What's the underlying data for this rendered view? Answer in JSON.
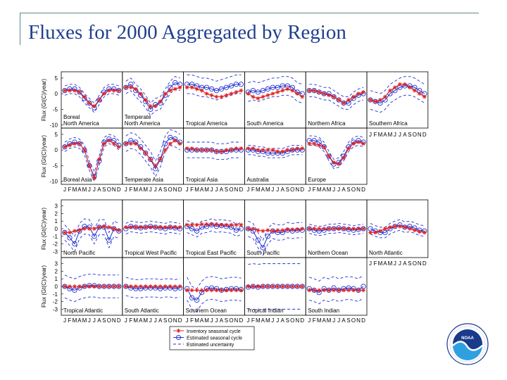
{
  "slide": {
    "title": "Fluxes for 2000 Aggregated by Region"
  },
  "chart_data": {
    "type": "line",
    "months": [
      "J",
      "F",
      "M",
      "A",
      "M",
      "J",
      "J",
      "A",
      "S",
      "O",
      "N",
      "D"
    ],
    "ylabel": "Flux (Gt(C)/year)",
    "legend": {
      "inventory": "Inventory seasonal cycle",
      "estimated": "Estimated seasonal cycle",
      "uncertainty": "Estimated uncertainty"
    },
    "colors": {
      "inventory": "#e02020",
      "estimated": "#2030d0",
      "uncertainty": "#2030d0"
    },
    "land": {
      "yticks": [
        5,
        0,
        -5,
        -10
      ],
      "ylim": [
        -11,
        7
      ],
      "regions": [
        {
          "name": "Boreal\nNorth America",
          "inventory": [
            1,
            1,
            1,
            0.5,
            -1,
            -3,
            -4,
            -2,
            0,
            1,
            1,
            1
          ],
          "estimated": [
            1,
            1.5,
            1.5,
            0.5,
            -1.5,
            -3,
            -4.5,
            -2,
            0.5,
            1.5,
            1.5,
            1
          ],
          "unc": 1.5
        },
        {
          "name": "Temperate\nNorth America",
          "inventory": [
            2,
            2,
            1.5,
            0,
            -2,
            -4,
            -4,
            -2.5,
            0,
            1,
            1.5,
            2
          ],
          "estimated": [
            2,
            3,
            1,
            -0.5,
            -2.5,
            -5,
            -3.5,
            -3,
            -0.5,
            2,
            3.5,
            3
          ],
          "unc": 2
        },
        {
          "name": "Tropical America",
          "inventory": [
            2,
            2,
            1.5,
            1,
            0,
            -0.5,
            -1,
            -1,
            -0.5,
            0,
            0.5,
            1
          ],
          "estimated": [
            3,
            3,
            2.5,
            2,
            2,
            1.5,
            1,
            1.5,
            2,
            2.5,
            3,
            3
          ],
          "unc": 3
        },
        {
          "name": "South America",
          "inventory": [
            0,
            -1,
            -1.5,
            -1,
            -0.5,
            0,
            0.5,
            1,
            1.5,
            1,
            0,
            -1
          ],
          "estimated": [
            0.5,
            1,
            0.5,
            1,
            1.5,
            2,
            2,
            2.5,
            2.5,
            2,
            0.5,
            0
          ],
          "unc": 3
        },
        {
          "name": "Northern Africa",
          "inventory": [
            1,
            1,
            0.5,
            0,
            -0.5,
            -1,
            -2,
            -3,
            -2,
            -1,
            0,
            0.5
          ],
          "estimated": [
            1,
            1,
            0.5,
            0,
            0,
            -1,
            -2,
            -3,
            -3,
            -1.5,
            -0.5,
            0
          ],
          "unc": 2
        },
        {
          "name": "Southern Africa",
          "inventory": [
            -2,
            -2.5,
            -2,
            -1,
            1,
            2,
            3,
            3,
            2,
            1,
            0,
            -1
          ],
          "estimated": [
            -2,
            -2.5,
            -3,
            -2,
            0,
            1,
            2,
            2.5,
            2.5,
            2,
            1,
            0
          ],
          "unc": 3
        },
        {
          "name": "Boreal Asia",
          "inventory": [
            1,
            1.5,
            2,
            2,
            0,
            -5,
            -9,
            -3,
            2,
            3,
            2,
            1
          ],
          "estimated": [
            1,
            2,
            2.5,
            2,
            0,
            -5,
            -8.5,
            -3.5,
            2.5,
            3.5,
            3,
            1.5
          ],
          "unc": 1.5
        },
        {
          "name": "Temperate Asia",
          "inventory": [
            2,
            2,
            2,
            0.5,
            -1,
            -3,
            -5,
            -3,
            0,
            2,
            3,
            2
          ],
          "estimated": [
            2,
            3,
            2.5,
            1,
            -1,
            -3,
            -6,
            -3,
            2,
            4,
            3.5,
            2.5
          ],
          "unc": 2.5
        },
        {
          "name": "Tropical Asia",
          "inventory": [
            0.5,
            0.5,
            0,
            0,
            0,
            0,
            -0.5,
            -0.5,
            0,
            0,
            0.5,
            0.5
          ],
          "estimated": [
            0,
            0,
            0,
            0,
            0,
            0,
            -0.5,
            -0.5,
            -0.5,
            0,
            0,
            0
          ],
          "unc": 2.5
        },
        {
          "name": "Australia",
          "inventory": [
            0.5,
            0.5,
            0,
            0,
            0,
            0,
            -0.5,
            -0.5,
            0,
            0,
            0.5,
            0.5
          ],
          "estimated": [
            0,
            0,
            -0.5,
            -0.5,
            -1,
            -1,
            -1,
            -1,
            -0.5,
            0,
            0,
            0
          ],
          "unc": 1.5
        },
        {
          "name": "Europe",
          "inventory": [
            2,
            2,
            1.5,
            1,
            -2,
            -4,
            -4.5,
            -2.5,
            0.5,
            2,
            2.5,
            2
          ],
          "estimated": [
            3,
            3,
            2.5,
            1,
            -2,
            -4.5,
            -4,
            -2,
            1,
            2.5,
            3,
            2.5
          ],
          "unc": 1.5
        }
      ]
    },
    "ocean": {
      "yticks": [
        3,
        2,
        1,
        0,
        -1,
        -2,
        -3
      ],
      "ylim": [
        -3.8,
        3.8
      ],
      "regions": [
        {
          "name": "North Pacific",
          "inventory": [
            -0.5,
            -0.5,
            -0.3,
            -0.2,
            0,
            0,
            0,
            0.2,
            0.3,
            0.2,
            0,
            -0.2
          ],
          "estimated": [
            -0.5,
            -1.2,
            -2,
            -0.3,
            0.3,
            0.2,
            -1,
            0.2,
            0.2,
            -1.5,
            0,
            -0.3
          ],
          "unc": 1
        },
        {
          "name": "Tropical West Pacific",
          "inventory": [
            0.2,
            0.2,
            0.2,
            0.2,
            0.2,
            0.2,
            0.2,
            0.2,
            0.2,
            0.2,
            0.2,
            0.2
          ],
          "estimated": [
            0,
            0.3,
            0.2,
            0.1,
            0.2,
            0.3,
            0.2,
            0.1,
            0,
            0.2,
            0.1,
            0
          ],
          "unc": 0.7
        },
        {
          "name": "Tropical East Pacific",
          "inventory": [
            0.5,
            0.5,
            0.5,
            0.6,
            0.6,
            0.6,
            0.6,
            0.5,
            0.5,
            0.5,
            0.5,
            0.5
          ],
          "estimated": [
            0.3,
            0,
            -0.3,
            0.2,
            0.3,
            0.5,
            0.3,
            0.4,
            0.3,
            0.2,
            -0.2,
            0
          ],
          "unc": 0.8
        },
        {
          "name": "South Pacific",
          "inventory": [
            0,
            0,
            -0.2,
            -0.3,
            -0.2,
            -0.3,
            -0.2,
            -0.2,
            -0.1,
            -0.1,
            -0.1,
            0
          ],
          "estimated": [
            0,
            -0.3,
            -1.5,
            -2.5,
            -1,
            -0.3,
            -0.5,
            -0.5,
            -0.2,
            -0.3,
            -0.2,
            -0.2
          ],
          "unc": 1
        },
        {
          "name": "Northern Ocean",
          "inventory": [
            0,
            0,
            0,
            0,
            0,
            0,
            0,
            0,
            0,
            0,
            0,
            0
          ],
          "estimated": [
            0,
            -0.2,
            -0.3,
            -0.2,
            0,
            0,
            0.1,
            0,
            -0.1,
            -0.2,
            -0.1,
            0
          ],
          "unc": 0.6
        },
        {
          "name": "North Atlantic",
          "inventory": [
            -0.5,
            -0.5,
            -0.3,
            0,
            0.2,
            0.3,
            0.3,
            0.2,
            0,
            -0.2,
            -0.4,
            -0.5
          ],
          "estimated": [
            0,
            -0.3,
            -0.5,
            -0.5,
            0,
            0.3,
            0.5,
            0.2,
            0.3,
            0.1,
            -0.2,
            -0.3
          ],
          "unc": 0.7
        },
        {
          "name": "Tropical Atlantic",
          "inventory": [
            0,
            0,
            0,
            0,
            0,
            0,
            0,
            0,
            0,
            0,
            0,
            0
          ],
          "estimated": [
            0,
            -0.3,
            -0.5,
            -0.2,
            0,
            0.1,
            0.1,
            0,
            0,
            0,
            0,
            0
          ],
          "unc": 1.5
        },
        {
          "name": "South Atlantic",
          "inventory": [
            0,
            0,
            0,
            0,
            0,
            0,
            0,
            0,
            0,
            0,
            0,
            0
          ],
          "estimated": [
            0,
            -0.2,
            -0.3,
            -0.3,
            -0.2,
            -0.2,
            -0.2,
            -0.3,
            -0.2,
            -0.2,
            -0.3,
            -0.2
          ],
          "unc": 1.2
        },
        {
          "name": "Southern Ocean",
          "inventory": [
            -0.5,
            -0.5,
            -0.5,
            -0.5,
            -0.5,
            -0.5,
            -0.5,
            -0.5,
            -0.5,
            -0.5,
            -0.5,
            -0.5
          ],
          "estimated": [
            -0.3,
            -1.5,
            -1.8,
            -0.8,
            -0.3,
            -0.2,
            -0.3,
            -0.5,
            -0.4,
            -0.3,
            -0.3,
            -0.4
          ],
          "unc": 1.5
        },
        {
          "name": "Tropical Indian",
          "inventory": [
            0,
            0,
            0,
            0,
            0,
            0,
            0,
            0,
            0,
            0,
            0,
            0
          ],
          "estimated": [
            -0.1,
            0,
            -0.1,
            0,
            0,
            0,
            0,
            0,
            0,
            0,
            0,
            0
          ],
          "unc": 3
        },
        {
          "name": "South Indian",
          "inventory": [
            -0.5,
            -0.5,
            -0.5,
            -0.5,
            -0.5,
            -0.5,
            -0.5,
            -0.5,
            -0.5,
            -0.5,
            -0.5,
            -0.5
          ],
          "estimated": [
            -0.3,
            -0.5,
            -0.8,
            -0.3,
            -0.5,
            -0.2,
            -0.5,
            -0.3,
            -0.2,
            -0.3,
            -0.5,
            0
          ],
          "unc": 1.5
        }
      ]
    }
  },
  "logo": {
    "text": "NOAA",
    "ring_text": "NATIONAL OCEANIC AND ATMOSPHERIC ADMINISTRATION · U.S. DEPARTMENT OF COMMERCE"
  }
}
